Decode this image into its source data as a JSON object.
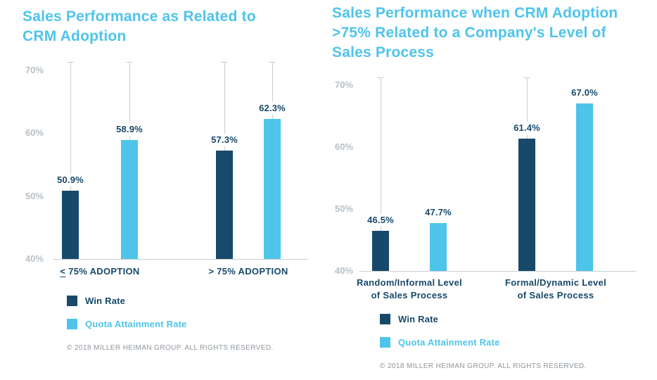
{
  "colors": {
    "background": "#FFFFFF",
    "navy": "#17496B",
    "light_blue": "#4EC4EB",
    "title_blue": "#4EC4EB",
    "axis_gray": "#B9C0C6",
    "line_gray": "#C8CFD4",
    "footer_gray": "#8E959B"
  },
  "chart_data": [
    {
      "type": "bar",
      "title": "Sales Performance as Related to CRM Adoption",
      "title_lines": [
        "Sales Performance as Related to",
        "CRM Adoption"
      ],
      "unit": "%",
      "categories": [
        {
          "name": "≤ 75% ADOPTION",
          "lines": [
            "< 75% ADOPTION"
          ],
          "underline_first_char": true
        },
        {
          "name": "> 75% ADOPTION",
          "lines": [
            "> 75% ADOPTION"
          ],
          "underline_first_char": false
        }
      ],
      "series": [
        {
          "name": "Win Rate",
          "color_key": "navy",
          "values": [
            50.9,
            57.3
          ],
          "labels": [
            "50.9%",
            "57.3%"
          ],
          "whiskers": [
            true,
            true
          ]
        },
        {
          "name": "Quota Attainment Rate",
          "color_key": "light_blue",
          "values": [
            58.9,
            62.3
          ],
          "labels": [
            "58.9%",
            "62.3%"
          ],
          "whiskers": [
            true,
            true
          ]
        }
      ],
      "ylim": [
        40,
        71.5
      ],
      "yticks": [
        {
          "value": 70,
          "label": "70%"
        },
        {
          "value": 60,
          "label": "60%"
        },
        {
          "value": 50,
          "label": "50%"
        },
        {
          "value": 40,
          "label": "40%"
        }
      ],
      "whisker_top": 71.3,
      "grid": false,
      "legend_position": "bottom-left",
      "footer": "© 2018 MILLER HEIMAN GROUP. ALL RIGHTS RESERVED."
    },
    {
      "type": "bar",
      "title": "Sales Performance when CRM Adoption >75% Related to a Company's Level of Sales Process",
      "title_lines": [
        "Sales Performance when CRM Adoption",
        ">75% Related to a Company's Level of",
        "Sales Process"
      ],
      "unit": "%",
      "categories": [
        {
          "name": "Random/Informal Level of Sales Process",
          "lines": [
            "Random/Informal Level",
            "of Sales Process"
          ],
          "underline_first_char": false
        },
        {
          "name": "Formal/Dynamic Level of Sales Process",
          "lines": [
            "Formal/Dynamic Level",
            "of Sales Process"
          ],
          "underline_first_char": false
        }
      ],
      "series": [
        {
          "name": "Win Rate",
          "color_key": "navy",
          "values": [
            46.5,
            61.4
          ],
          "labels": [
            "46.5%",
            "61.4%"
          ],
          "whiskers": [
            true,
            true
          ]
        },
        {
          "name": "Quota Attainment Rate",
          "color_key": "light_blue",
          "values": [
            47.7,
            67.0
          ],
          "labels": [
            "47.7%",
            "67.0%"
          ],
          "whiskers": [
            false,
            false
          ]
        }
      ],
      "ylim": [
        40,
        71.5
      ],
      "yticks": [
        {
          "value": 70,
          "label": "70%"
        },
        {
          "value": 60,
          "label": "60%"
        },
        {
          "value": 50,
          "label": "50%"
        },
        {
          "value": 40,
          "label": "40%"
        }
      ],
      "whisker_top": 71.3,
      "grid": false,
      "legend_position": "bottom-left",
      "footer": "© 2018 MILLER HEIMAN GROUP. ALL RIGHTS RESERVED."
    }
  ]
}
